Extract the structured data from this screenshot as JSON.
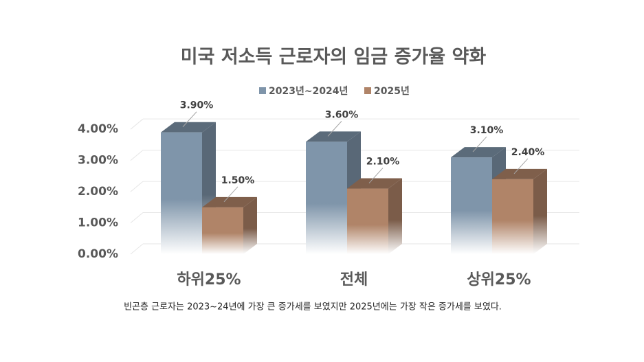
{
  "chart_data": {
    "type": "bar3d",
    "title": "미국 저소득 근로자의 임금 증가율 약화",
    "categories": [
      "하위25%",
      "전체",
      "상위25%"
    ],
    "series": [
      {
        "name": "2023년~2024년",
        "color": "#7f95aa",
        "values": [
          3.9,
          3.6,
          3.1
        ],
        "value_labels": [
          "3.90%",
          "3.60%",
          "3.10%"
        ]
      },
      {
        "name": "2025년",
        "color": "#b08468",
        "values": [
          1.5,
          2.1,
          2.4
        ],
        "value_labels": [
          "1.50%",
          "2.10%",
          "2.40%"
        ]
      }
    ],
    "ylim": [
      0,
      4.4
    ],
    "yticks": [
      {
        "value": 0,
        "label": "0.00%"
      },
      {
        "value": 1,
        "label": "1.00%"
      },
      {
        "value": 2,
        "label": "2.00%"
      },
      {
        "value": 3,
        "label": "3.00%"
      },
      {
        "value": 4,
        "label": "4.00%"
      }
    ],
    "grid": true,
    "legend": "top",
    "note": "빈곤층 근로자는 2023~24년에 가장 큰 증가세를 보였지만 2025년에는 가장 작은 증가세를 보였다."
  }
}
